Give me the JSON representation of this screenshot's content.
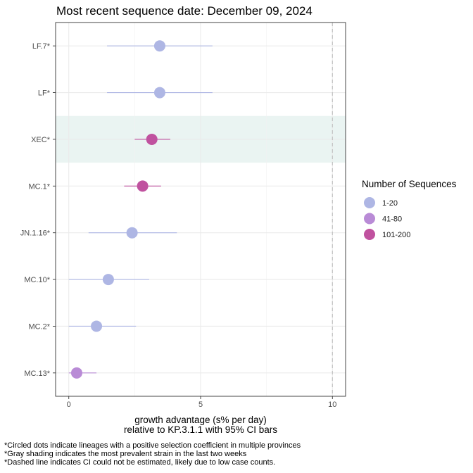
{
  "title": "Most recent sequence date: December 09, 2024",
  "chart_data": {
    "type": "scatter",
    "subtype": "point-range (forest plot)",
    "x_axis": {
      "label_line1": "growth advantage (s% per day)",
      "label_line2": "relative to  KP.3.1.1  with 95% CI bars",
      "ticks": [
        0,
        5,
        10
      ],
      "range": [
        -0.5,
        10.5
      ]
    },
    "reference_line": {
      "x": 10,
      "style": "dashed",
      "color": "#bdbdbd"
    },
    "grid": true,
    "shaded_row": "XEC*",
    "shade_color": "#eaf4f2",
    "legend": {
      "title": "Number of Sequences",
      "placement": "right",
      "items": [
        {
          "label": "1-20",
          "color": "#aeb6e4"
        },
        {
          "label": "41-80",
          "color": "#b98bd6"
        },
        {
          "label": "101-200",
          "color": "#c0529f"
        }
      ]
    },
    "rows": [
      {
        "label": "LF.7*",
        "value": 3.45,
        "lo": 1.45,
        "hi": 5.45,
        "group": "1-20"
      },
      {
        "label": "LF*",
        "value": 3.45,
        "lo": 1.45,
        "hi": 5.45,
        "group": "1-20"
      },
      {
        "label": "XEC*",
        "value": 3.15,
        "lo": 2.5,
        "hi": 3.85,
        "group": "101-200"
      },
      {
        "label": "MC.1*",
        "value": 2.8,
        "lo": 2.1,
        "hi": 3.5,
        "group": "101-200"
      },
      {
        "label": "JN.1.16*",
        "value": 2.4,
        "lo": 0.75,
        "hi": 4.1,
        "group": "1-20"
      },
      {
        "label": "MC.10*",
        "value": 1.5,
        "lo": 0.0,
        "hi": 3.05,
        "group": "1-20"
      },
      {
        "label": "MC.2*",
        "value": 1.05,
        "lo": 0.0,
        "hi": 2.55,
        "group": "1-20"
      },
      {
        "label": "MC.13*",
        "value": 0.3,
        "lo": 0.0,
        "hi": 1.05,
        "group": "41-80"
      }
    ]
  },
  "footnotes": [
    "*Circled dots indicate lineages with a positive selection coefficient in multiple provinces",
    "*Gray shading indicates the most prevalent strain in the last two weeks",
    "*Dashed line indicates CI could not be estimated, likely due to low case counts."
  ]
}
